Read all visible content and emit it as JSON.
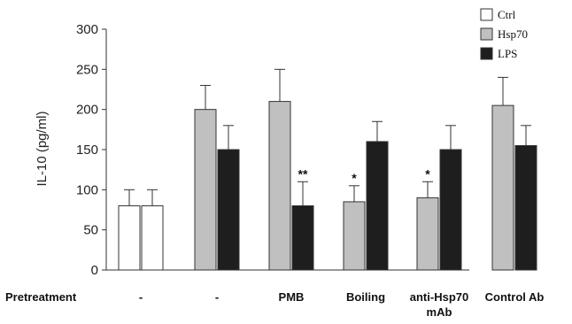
{
  "chart_data": {
    "type": "bar",
    "ylabel": "IL-10 (pg/ml)",
    "ylim": [
      0,
      300
    ],
    "yticks": [
      0,
      50,
      100,
      150,
      200,
      250,
      300
    ],
    "row_label": "Pretreatment",
    "categories": [
      {
        "label": "-",
        "bars": [
          {
            "series": "Ctrl",
            "value": 80,
            "error": 20,
            "annotation": ""
          },
          {
            "series": "Ctrl",
            "value": 80,
            "error": 20,
            "annotation": ""
          }
        ]
      },
      {
        "label": "-",
        "bars": [
          {
            "series": "Hsp70",
            "value": 200,
            "error": 30,
            "annotation": ""
          },
          {
            "series": "LPS",
            "value": 150,
            "error": 30,
            "annotation": ""
          }
        ]
      },
      {
        "label": "PMB",
        "bars": [
          {
            "series": "Hsp70",
            "value": 210,
            "error": 40,
            "annotation": ""
          },
          {
            "series": "LPS",
            "value": 80,
            "error": 30,
            "annotation": "**"
          }
        ]
      },
      {
        "label": "Boiling",
        "bars": [
          {
            "series": "Hsp70",
            "value": 85,
            "error": 20,
            "annotation": "*"
          },
          {
            "series": "LPS",
            "value": 160,
            "error": 25,
            "annotation": ""
          }
        ]
      },
      {
        "label": "anti-Hsp70\nmAb",
        "bars": [
          {
            "series": "Hsp70",
            "value": 90,
            "error": 20,
            "annotation": "*"
          },
          {
            "series": "LPS",
            "value": 150,
            "error": 30,
            "annotation": ""
          }
        ]
      },
      {
        "label": "Control Ab",
        "bars": [
          {
            "series": "Hsp70",
            "value": 205,
            "error": 35,
            "annotation": ""
          },
          {
            "series": "LPS",
            "value": 155,
            "error": 25,
            "annotation": ""
          }
        ]
      }
    ],
    "legend": [
      {
        "name": "Ctrl",
        "color": "#ffffff"
      },
      {
        "name": "Hsp70",
        "color": "#c0c0c0"
      },
      {
        "name": "LPS",
        "color": "#1e1e1e"
      }
    ],
    "legend_position": "top-right",
    "grid": false
  }
}
